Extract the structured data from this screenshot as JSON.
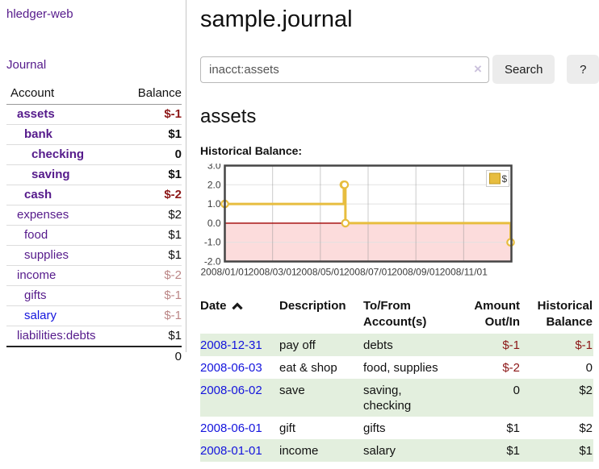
{
  "app": {
    "brand": "hledger-web",
    "nav_journal": "Journal"
  },
  "colors": {
    "link_purple": "#551a8b",
    "link_blue": "#1414dd",
    "negative_red": "#8c1717",
    "negative_red_light": "#bb8686",
    "row_stripe_green": "#e3efde",
    "chart_gold": "#e7bd3f",
    "chart_negative_fill": "#fcdcdc",
    "chart_zero_line": "#a00000"
  },
  "sidebar": {
    "col_account": "Account",
    "col_balance": "Balance",
    "accounts": [
      {
        "name": "assets",
        "depth": 1,
        "bold": true,
        "balance": "$-1",
        "balance_style": "neg"
      },
      {
        "name": "bank",
        "depth": 2,
        "bold": true,
        "balance": "$1",
        "balance_style": "pos"
      },
      {
        "name": "checking",
        "depth": 3,
        "bold": true,
        "balance": "0",
        "balance_style": "pos"
      },
      {
        "name": "saving",
        "depth": 3,
        "bold": true,
        "balance": "$1",
        "balance_style": "pos"
      },
      {
        "name": "cash",
        "depth": 2,
        "bold": true,
        "balance": "$-2",
        "balance_style": "neg"
      },
      {
        "name": "expenses",
        "depth": 1,
        "bold": false,
        "balance": "$2",
        "balance_style": "pos"
      },
      {
        "name": "food",
        "depth": 2,
        "bold": false,
        "balance": "$1",
        "balance_style": "pos"
      },
      {
        "name": "supplies",
        "depth": 2,
        "bold": false,
        "balance": "$1",
        "balance_style": "pos"
      },
      {
        "name": "income",
        "depth": 1,
        "bold": false,
        "balance": "$-2",
        "balance_style": "neg-light"
      },
      {
        "name": "gifts",
        "depth": 2,
        "bold": false,
        "balance": "$-1",
        "balance_style": "neg-light"
      },
      {
        "name": "salary",
        "depth": 2,
        "bold": false,
        "balance": "$-1",
        "balance_style": "neg-light",
        "link_style": "blue"
      },
      {
        "name": "liabilities:debts",
        "depth": 1,
        "bold": false,
        "balance": "$1",
        "balance_style": "pos"
      }
    ],
    "total": "0"
  },
  "main": {
    "title": "sample.journal",
    "search": {
      "value": "inacct:assets",
      "clear_label": "×",
      "button_label": "Search",
      "help_label": "?"
    },
    "account_heading": "assets",
    "chart_label": "Historical Balance:"
  },
  "chart_data": {
    "type": "line",
    "step": true,
    "title": "Historical Balance",
    "legend": "$",
    "legend_position": "top-right",
    "x_start": "2008-01-01",
    "x_end": "2009-01-01",
    "x_tick_labels": [
      "2008/01/01",
      "2008/03/01",
      "2008/05/01",
      "2008/07/01",
      "2008/09/01",
      "2008/11/01"
    ],
    "y_ticks": [
      3.0,
      2.0,
      1.0,
      0.0,
      -1.0,
      -2.0
    ],
    "ylim": [
      -2,
      3
    ],
    "grid": true,
    "series": [
      {
        "name": "$",
        "color": "#e7bd3f",
        "points": [
          {
            "date": "2008-01-01",
            "value": 1
          },
          {
            "date": "2008-06-01",
            "value": 2
          },
          {
            "date": "2008-06-02",
            "value": 2
          },
          {
            "date": "2008-06-03",
            "value": 0
          },
          {
            "date": "2008-12-31",
            "value": -1
          }
        ]
      }
    ],
    "negative_fill": "#fcdcdc",
    "zero_line_color": "#a00000"
  },
  "register": {
    "headers": {
      "date": "Date",
      "description": "Description",
      "accounts": "To/From Account(s)",
      "amount": "Amount Out/In",
      "balance": "Historical Balance"
    },
    "sort": "date ascending",
    "rows": [
      {
        "date": "2008-12-31",
        "description": "pay off",
        "accounts": "debts",
        "amount": "$-1",
        "amount_neg": true,
        "balance": "$-1",
        "balance_neg": true
      },
      {
        "date": "2008-06-03",
        "description": "eat & shop",
        "accounts": "food, supplies",
        "amount": "$-2",
        "amount_neg": true,
        "balance": "0",
        "balance_neg": false
      },
      {
        "date": "2008-06-02",
        "description": "save",
        "accounts": "saving, checking",
        "amount": "0",
        "amount_neg": false,
        "balance": "$2",
        "balance_neg": false
      },
      {
        "date": "2008-06-01",
        "description": "gift",
        "accounts": "gifts",
        "amount": "$1",
        "amount_neg": false,
        "balance": "$2",
        "balance_neg": false
      },
      {
        "date": "2008-01-01",
        "description": "income",
        "accounts": "salary",
        "amount": "$1",
        "amount_neg": false,
        "balance": "$1",
        "balance_neg": false
      }
    ]
  }
}
